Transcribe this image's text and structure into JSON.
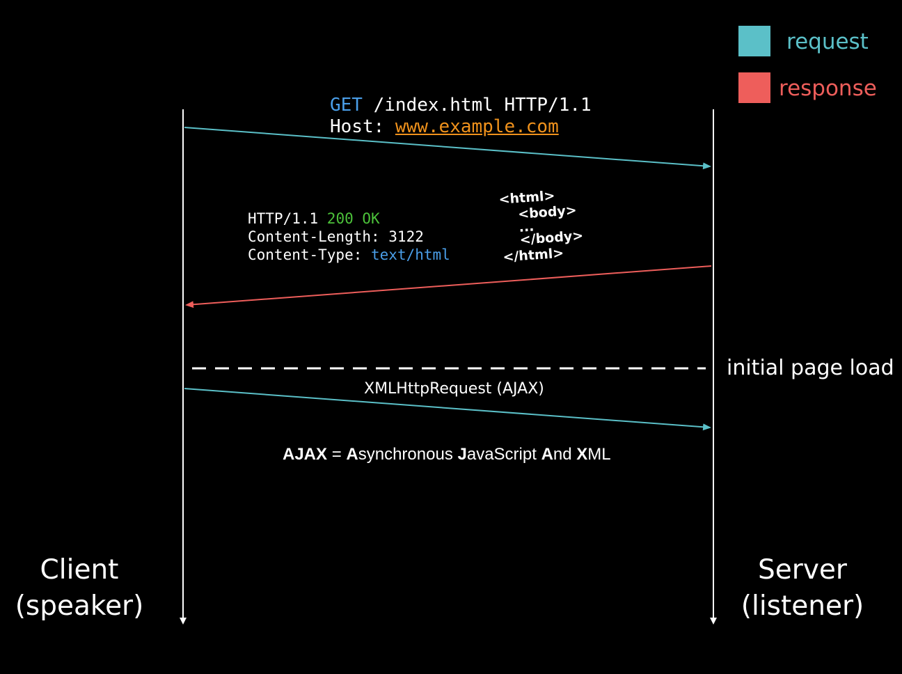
{
  "legend": {
    "request_label": "request",
    "response_label": "response"
  },
  "colors": {
    "background": "#000000",
    "request": "#5bc0c8",
    "response": "#ee5e5b",
    "keyword_blue": "#4a9ee8",
    "status_green": "#4cc23a",
    "link_orange": "#f0921c",
    "text": "#ffffff"
  },
  "request": {
    "method": "GET",
    "request_line_rest": " /index.html HTTP/1.1",
    "host_key": "Host: ",
    "host_value": "www.example.com"
  },
  "response": {
    "status_prefix": "HTTP/1.1 ",
    "status_code": "200 OK",
    "content_length": "Content-Length: 3122",
    "content_type_key": "Content-Type: ",
    "content_type_value": "text/html",
    "html_snippet": {
      "line1": "<html>",
      "line2": "<body>",
      "line3": "...",
      "line4": "</body>",
      "line5": "</html>"
    }
  },
  "phase_label": "initial page load",
  "ajax": {
    "arrow_label": "XMLHttpRequest (AJAX)",
    "expansion": {
      "acronym": "AJAX",
      "equals": " = ",
      "a1": "A",
      "a1_rest": "synchronous ",
      "j": "J",
      "j_rest": "avaScript ",
      "a2": "A",
      "a2_rest": "nd ",
      "x": "X",
      "x_rest": "ML"
    }
  },
  "client": {
    "name": "Client",
    "role": "(speaker)"
  },
  "server": {
    "name": "Server",
    "role": "(listener)"
  }
}
